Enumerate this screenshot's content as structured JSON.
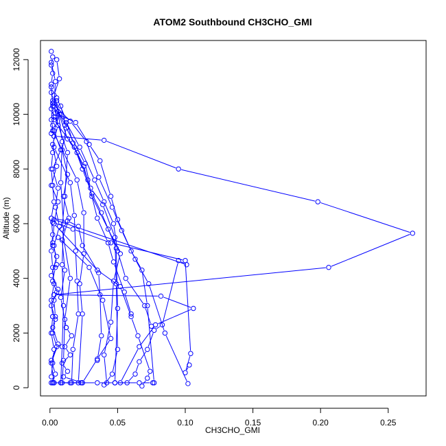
{
  "chart_data": {
    "type": "line",
    "title": "ATOM2 Southbound CH3CHO_GMI",
    "xlabel": "CH3CHO_GMI",
    "ylabel": "Altitude (m)",
    "xlim": [
      -0.007,
      0.278
    ],
    "ylim": [
      -300,
      12700
    ],
    "xticks": [
      0.0,
      0.05,
      0.1,
      0.15,
      0.2,
      0.25
    ],
    "xtick_labels": [
      "0.00",
      "0.05",
      "0.10",
      "0.15",
      "0.20",
      "0.25"
    ],
    "yticks": [
      0,
      2000,
      4000,
      6000,
      8000,
      10000,
      12000
    ],
    "ytick_labels": [
      "0",
      "2000",
      "4000",
      "6000",
      "8000",
      "10000",
      "12000"
    ],
    "grid": false,
    "marker": "open-circle",
    "color": "#0000ff",
    "series": [
      {
        "x": [
          0.001,
          0.002,
          0.001,
          0.002,
          0.001,
          0.001,
          0.002,
          0.001,
          0.003,
          0.002,
          0.001
        ],
        "y": [
          12300,
          12100,
          11800,
          11500,
          11100,
          10800,
          10500,
          10200,
          9900,
          9600,
          9300
        ]
      },
      {
        "x": [
          0.003,
          0.04,
          0.095,
          0.198,
          0.268,
          0.206,
          0.003
        ],
        "y": [
          9200,
          9050,
          8000,
          6800,
          5650,
          4400,
          3400
        ]
      },
      {
        "x": [
          0.003,
          0.082,
          0.106,
          0.078,
          0.066,
          0.052
        ],
        "y": [
          3400,
          3350,
          2900,
          2300,
          1500,
          180
        ]
      },
      {
        "x": [
          0.003,
          0.101,
          0.095,
          0.083,
          0.077,
          0.072,
          0.066,
          0.063,
          0.057,
          0.048
        ],
        "y": [
          6150,
          4500,
          4650,
          2300,
          2100,
          1400,
          950,
          500,
          180,
          180
        ]
      },
      {
        "x": [
          0.002,
          0.012,
          0.022,
          0.033,
          0.04,
          0.047,
          0.05,
          0.056,
          0.07,
          0.075
        ],
        "y": [
          10300,
          9700,
          8800,
          7600,
          6800,
          6000,
          5000,
          4000,
          3000,
          2250
        ]
      },
      {
        "x": [
          0.004,
          0.019,
          0.029,
          0.037,
          0.045,
          0.05,
          0.06,
          0.068,
          0.072,
          0.077
        ],
        "y": [
          10050,
          9700,
          8900,
          8300,
          7000,
          6150,
          5000,
          4300,
          3000,
          180
        ]
      },
      {
        "x": [
          0.002,
          0.015,
          0.027,
          0.036,
          0.046,
          0.053,
          0.063,
          0.073,
          0.085,
          0.102
        ],
        "y": [
          10400,
          9750,
          9000,
          7700,
          6600,
          5750,
          4700,
          3800,
          2000,
          150
        ]
      },
      {
        "x": [
          0.003,
          0.011,
          0.026,
          0.03,
          0.039,
          0.048,
          0.049,
          0.05,
          0.046,
          0.04
        ],
        "y": [
          10450,
          9600,
          8200,
          7300,
          6700,
          5500,
          3800,
          1400,
          500,
          100
        ]
      },
      {
        "x": [
          0.003,
          0.018,
          0.025,
          0.031,
          0.043,
          0.052,
          0.047,
          0.045,
          0.04,
          0.042
        ],
        "y": [
          9800,
          8800,
          8100,
          7000,
          5800,
          4900,
          3900,
          2400,
          1200,
          180
        ]
      },
      {
        "x": [
          0.005,
          0.012,
          0.017,
          0.024,
          0.031,
          0.038,
          0.049,
          0.05,
          0.048
        ],
        "y": [
          10600,
          9800,
          8950,
          8000,
          7100,
          6400,
          5100,
          2900,
          180
        ]
      },
      {
        "x": [
          0.006,
          0.013,
          0.02,
          0.028,
          0.035,
          0.043,
          0.047,
          0.055,
          0.06
        ],
        "y": [
          10100,
          9100,
          8600,
          7600,
          6200,
          5300,
          4600,
          3500,
          2700
        ]
      },
      {
        "x": [
          0.001,
          0.013,
          0.021,
          0.024,
          0.036,
          0.037,
          0.038,
          0.035
        ],
        "y": [
          6200,
          6100,
          5900,
          5200,
          4200,
          3400,
          1900,
          1000
        ]
      },
      {
        "x": [
          0.002,
          0.02,
          0.025,
          0.025,
          0.022,
          0.024,
          0.021
        ],
        "y": [
          9400,
          7600,
          6400,
          4900,
          3800,
          2700,
          180
        ]
      },
      {
        "x": [
          0.003,
          0.015,
          0.018,
          0.019,
          0.02,
          0.021,
          0.017,
          0.016
        ],
        "y": [
          8800,
          7500,
          6300,
          5000,
          3900,
          2700,
          1400,
          180
        ]
      },
      {
        "x": [
          0.004,
          0.013,
          0.011,
          0.009,
          0.015,
          0.011,
          0.01,
          0.009
        ],
        "y": [
          9900,
          8600,
          7000,
          5800,
          4000,
          2500,
          1000,
          180
        ]
      },
      {
        "x": [
          0.005,
          0.009,
          0.008,
          0.01,
          0.009,
          0.01,
          0.009,
          0.008
        ],
        "y": [
          10500,
          9000,
          7500,
          6000,
          4500,
          3000,
          1500,
          180
        ]
      },
      {
        "x": [
          0.002,
          0.017,
          0.045,
          0.1,
          0.104,
          0.1,
          0.103
        ],
        "y": [
          6050,
          5800,
          5300,
          4650,
          1250,
          550,
          830
        ]
      },
      {
        "x": [
          0.003,
          0.035,
          0.052,
          0.06,
          0.065,
          0.074,
          0.072,
          0.068
        ],
        "y": [
          6000,
          4300,
          3700,
          2600,
          1900,
          600,
          350,
          60
        ]
      },
      {
        "x": [
          0.006,
          0.029,
          0.039,
          0.045,
          0.035,
          0.024
        ],
        "y": [
          5500,
          4400,
          3200,
          1800,
          1050,
          180
        ]
      },
      {
        "x": [
          0.005,
          0.007,
          0.003,
          0.007,
          0.003,
          0.008,
          0.002,
          0.006,
          0.004,
          0.007,
          0.003,
          0.005
        ],
        "y": [
          12000,
          11300,
          10700,
          10000,
          9400,
          8700,
          8000,
          7300,
          6600,
          5900,
          5200,
          4500
        ]
      },
      {
        "x": [
          0.004,
          0.002,
          0.005,
          0.001,
          0.004,
          0.002,
          0.005,
          0.001,
          0.004,
          0.002
        ],
        "y": [
          4400,
          3900,
          3500,
          3000,
          2500,
          2000,
          1500,
          1000,
          500,
          180
        ]
      },
      {
        "x": [
          0.001,
          0.004,
          0.003,
          0.006,
          0.002,
          0.005,
          0.001,
          0.006,
          0.003,
          0.002
        ],
        "y": [
          11900,
          11200,
          10300,
          9600,
          8900,
          8100,
          7400,
          6800,
          6000,
          5300
        ]
      },
      {
        "x": [
          0.002,
          0.005,
          0.001,
          0.006,
          0.003,
          0.004,
          0.002,
          0.006,
          0.001,
          0.003
        ],
        "y": [
          5200,
          4800,
          4100,
          3600,
          3200,
          2600,
          2200,
          1600,
          900,
          180
        ]
      },
      {
        "x": [
          0.008,
          0.012,
          0.009,
          0.013,
          0.01,
          0.014,
          0.009,
          0.011,
          0.008,
          0.012
        ],
        "y": [
          10300,
          9500,
          8700,
          7800,
          7000,
          6200,
          5400,
          4300,
          3300,
          2200
        ]
      },
      {
        "x": [
          0.012,
          0.016,
          0.011,
          0.015,
          0.009,
          0.013,
          0.01,
          0.024,
          0.008,
          0.023
        ],
        "y": [
          2200,
          1900,
          1500,
          1200,
          900,
          600,
          400,
          180,
          180,
          180
        ]
      },
      {
        "x": [
          0.001,
          0.002,
          0.001,
          0.003,
          0.002,
          0.001,
          0.002,
          0.003,
          0.001,
          0.002,
          0.001,
          0.002,
          0.003,
          0.001,
          0.002
        ],
        "y": [
          11000,
          10400,
          9800,
          9200,
          8600,
          8000,
          7400,
          6800,
          6200,
          5600,
          5000,
          4400,
          3800,
          3200,
          2600
        ]
      },
      {
        "x": [
          0.002,
          0.001,
          0.003,
          0.002,
          0.001,
          0.003,
          0.002,
          0.001,
          0.015,
          0.035,
          0.048,
          0.066,
          0.076
        ],
        "y": [
          2600,
          2000,
          1400,
          900,
          400,
          180,
          180,
          180,
          180,
          180,
          180,
          180,
          180
        ]
      }
    ]
  }
}
